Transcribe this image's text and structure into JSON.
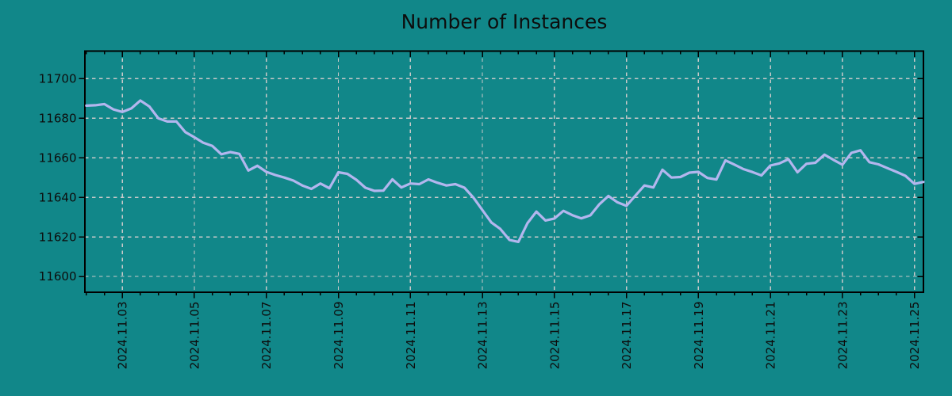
{
  "title": "Number of Instances",
  "colors": {
    "background": "#118789",
    "line": "#b3b6ee",
    "grid": "#c9c9c9",
    "axes": "#000000",
    "text": "#0d0d0d"
  },
  "chart_data": {
    "type": "line",
    "title": "Number of Instances",
    "legend": false,
    "grid": true,
    "grid_style": "dashed",
    "y_ticks": [
      11600,
      11620,
      11640,
      11660,
      11680,
      11700
    ],
    "ylim": [
      11592,
      11714
    ],
    "x_tick_labels": [
      "2024.11.03",
      "2024.11.05",
      "2024.11.07",
      "2024.11.09",
      "2024.11.11",
      "2024.11.13",
      "2024.11.15",
      "2024.11.17",
      "2024.11.19",
      "2024.11.21",
      "2024.11.23",
      "2024.11.25"
    ],
    "x_tick_days": [
      3,
      5,
      7,
      9,
      11,
      13,
      15,
      17,
      19,
      21,
      23,
      25
    ],
    "x_minor_step_days": 0.5,
    "xlim_days": [
      1.96,
      25.25
    ],
    "series": [
      {
        "name": "Number of Instances",
        "start_day": 2.0,
        "step_days": 0.25,
        "values": [
          11686.4,
          11686.6,
          11687.2,
          11684.5,
          11683.2,
          11685.0,
          11689.0,
          11686.0,
          11680.0,
          11678.4,
          11678.4,
          11673.0,
          11670.4,
          11667.6,
          11666.0,
          11661.8,
          11662.9,
          11662.0,
          11653.6,
          11656.0,
          11652.9,
          11651.3,
          11650.0,
          11648.5,
          11646.0,
          11644.3,
          11647.0,
          11644.6,
          11652.7,
          11651.9,
          11648.9,
          11644.9,
          11643.3,
          11643.4,
          11649.1,
          11645.0,
          11647.0,
          11646.7,
          11649.1,
          11647.4,
          11646.0,
          11646.7,
          11644.9,
          11639.9,
          11633.6,
          11627.3,
          11624.0,
          11618.5,
          11617.5,
          11626.9,
          11632.8,
          11628.3,
          11629.3,
          11633.2,
          11631.0,
          11629.4,
          11630.9,
          11636.5,
          11640.7,
          11637.5,
          11635.7,
          11640.9,
          11646.0,
          11645.0,
          11654.0,
          11650.0,
          11650.3,
          11652.5,
          11652.9,
          11649.8,
          11649.0,
          11658.7,
          11656.6,
          11654.3,
          11652.8,
          11651.1,
          11656.1,
          11657.2,
          11659.3,
          11652.7,
          11657.0,
          11657.5,
          11661.6,
          11659.0,
          11656.5,
          11662.5,
          11663.8,
          11657.8,
          11656.7,
          11654.8,
          11652.9,
          11650.9,
          11646.8,
          11647.8
        ]
      }
    ]
  }
}
